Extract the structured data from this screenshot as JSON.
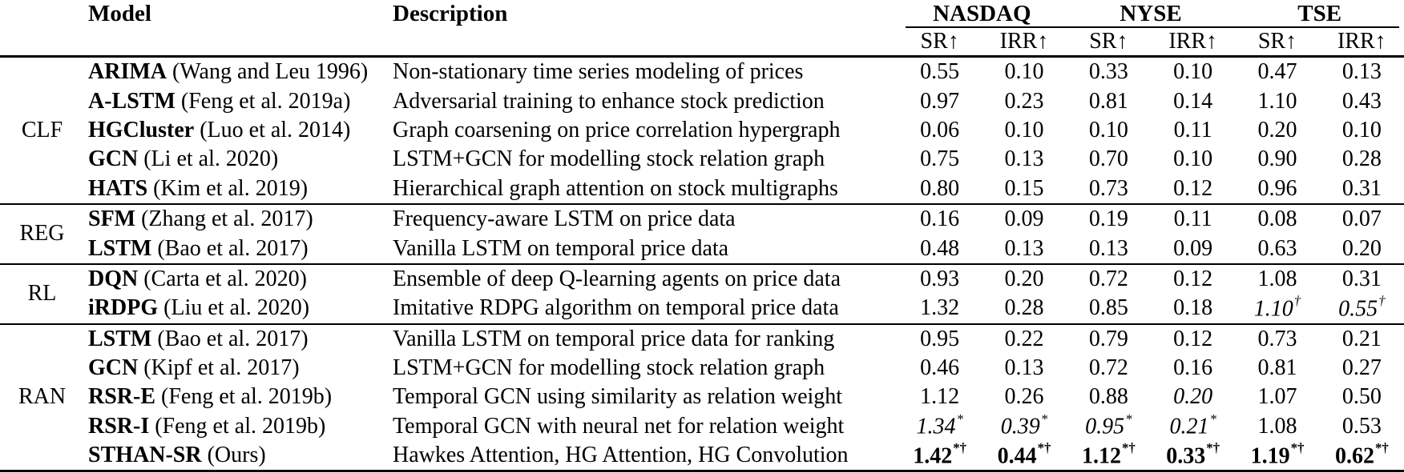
{
  "header": {
    "model": "Model",
    "description": "Description",
    "exchanges": [
      "NASDAQ",
      "NYSE",
      "TSE"
    ],
    "metric_cols": [
      "SR↑",
      "IRR↑",
      "SR↑",
      "IRR↑",
      "SR↑",
      "IRR↑"
    ]
  },
  "groups": [
    {
      "label": "CLF",
      "rows": [
        {
          "model": "ARIMA",
          "cite": "(Wang and Leu 1996)",
          "desc": "Non-stationary time series modeling of prices",
          "values": [
            "0.55",
            "0.10",
            "0.33",
            "0.10",
            "0.47",
            "0.13"
          ]
        },
        {
          "model": "A-LSTM",
          "cite": "(Feng et al. 2019a)",
          "desc": "Adversarial training to enhance stock prediction",
          "values": [
            "0.97",
            "0.23",
            "0.81",
            "0.14",
            "1.10",
            "0.43"
          ]
        },
        {
          "model": "HGCluster",
          "cite": "(Luo et al. 2014)",
          "desc": "Graph coarsening on price correlation hypergraph",
          "values": [
            "0.06",
            "0.10",
            "0.10",
            "0.11",
            "0.20",
            "0.10"
          ]
        },
        {
          "model": "GCN",
          "cite": "(Li et al. 2020)",
          "desc": "LSTM+GCN for modelling stock relation graph",
          "values": [
            "0.75",
            "0.13",
            "0.70",
            "0.10",
            "0.90",
            "0.28"
          ]
        },
        {
          "model": "HATS",
          "cite": "(Kim et al. 2019)",
          "desc": "Hierarchical graph attention on stock multigraphs",
          "values": [
            "0.80",
            "0.15",
            "0.73",
            "0.12",
            "0.96",
            "0.31"
          ]
        }
      ]
    },
    {
      "label": "REG",
      "rows": [
        {
          "model": "SFM",
          "cite": "(Zhang et al. 2017)",
          "desc": "Frequency-aware LSTM on price data",
          "values": [
            "0.16",
            "0.09",
            "0.19",
            "0.11",
            "0.08",
            "0.07"
          ]
        },
        {
          "model": "LSTM",
          "cite": "(Bao et al. 2017)",
          "desc": "Vanilla LSTM on temporal price data",
          "values": [
            "0.48",
            "0.13",
            "0.13",
            "0.09",
            "0.63",
            "0.20"
          ]
        }
      ]
    },
    {
      "label": "RL",
      "rows": [
        {
          "model": "DQN",
          "cite": "(Carta et al. 2020)",
          "desc": "Ensemble of deep Q-learning agents on price data",
          "values": [
            "0.93",
            "0.20",
            "0.72",
            "0.12",
            "1.08",
            "0.31"
          ]
        },
        {
          "model": "iRDPG",
          "cite": "(Liu et al. 2020)",
          "desc": "Imitative RDPG algorithm on temporal price data",
          "values": [
            "1.32",
            "0.28",
            "0.85",
            "0.18",
            {
              "v": "1.10",
              "sup": "†",
              "italic": true
            },
            {
              "v": "0.55",
              "sup": "†",
              "italic": true
            }
          ]
        }
      ]
    },
    {
      "label": "RAN",
      "rows": [
        {
          "model": "LSTM",
          "cite": "(Bao et al. 2017)",
          "desc": "Vanilla LSTM on temporal price data for ranking",
          "values": [
            "0.95",
            "0.22",
            "0.79",
            "0.12",
            "0.73",
            "0.21"
          ]
        },
        {
          "model": "GCN",
          "cite": "(Kipf et al. 2017)",
          "desc": "LSTM+GCN for modelling stock relation graph",
          "values": [
            "0.46",
            "0.13",
            "0.72",
            "0.16",
            "0.81",
            "0.27"
          ]
        },
        {
          "model": "RSR-E",
          "cite": "(Feng et al. 2019b)",
          "desc": "Temporal GCN using similarity as relation weight",
          "values": [
            "1.12",
            "0.26",
            "0.88",
            {
              "v": "0.20",
              "italic": true
            },
            "1.07",
            "0.50"
          ]
        },
        {
          "model": "RSR-I",
          "cite": "(Feng et al. 2019b)",
          "desc": "Temporal GCN with neural net for relation weight",
          "values": [
            {
              "v": "1.34",
              "sup": "*",
              "italic": true
            },
            {
              "v": "0.39",
              "sup": "*",
              "italic": true
            },
            {
              "v": "0.95",
              "sup": "*",
              "italic": true
            },
            {
              "v": "0.21",
              "sup": "*",
              "italic": true
            },
            "1.08",
            "0.53"
          ]
        },
        {
          "model": "STHAN-SR",
          "cite": "(Ours)",
          "desc": "Hawkes Attention, HG Attention, HG Convolution",
          "values": [
            {
              "v": "1.42",
              "sup": "*†",
              "bold": true
            },
            {
              "v": "0.44",
              "sup": "*†",
              "bold": true
            },
            {
              "v": "1.12",
              "sup": "*†",
              "bold": true
            },
            {
              "v": "0.33",
              "sup": "*†",
              "bold": true
            },
            {
              "v": "1.19",
              "sup": "*†",
              "bold": true
            },
            {
              "v": "0.62",
              "sup": "*†",
              "bold": true
            }
          ]
        }
      ]
    }
  ]
}
